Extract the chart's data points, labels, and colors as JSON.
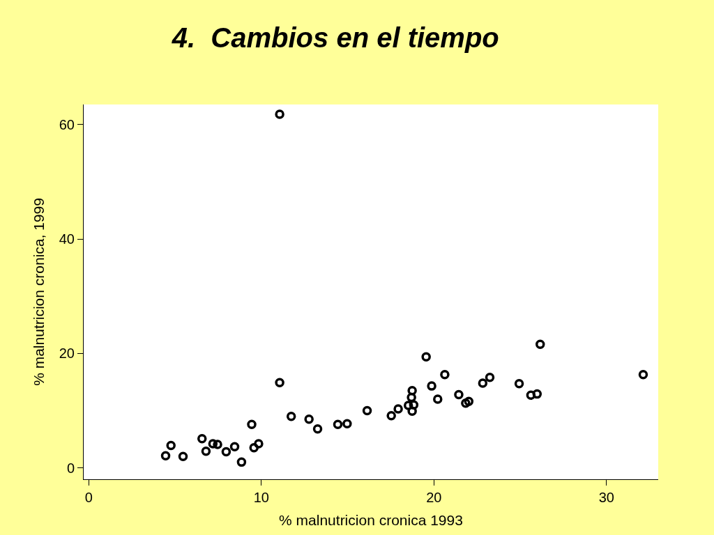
{
  "chart_data": {
    "type": "scatter",
    "title": "4.  Cambios en el tiempo",
    "xlabel": "% malnutricion cronica 1993",
    "ylabel": "% malnutricion cronica, 1999",
    "x": [
      4.45,
      4.76,
      5.46,
      6.56,
      6.79,
      7.19,
      7.46,
      7.96,
      8.45,
      8.85,
      9.44,
      9.57,
      9.84,
      11.06,
      11.06,
      11.73,
      12.76,
      13.26,
      14.43,
      14.97,
      16.13,
      17.53,
      17.93,
      18.52,
      18.7,
      18.74,
      18.83,
      18.74,
      19.55,
      19.87,
      20.22,
      20.63,
      21.44,
      21.84,
      22.02,
      22.83,
      23.24,
      24.94,
      25.62,
      25.98,
      26.16,
      32.13
    ],
    "series": [
      {
        "color": "#000000",
        "values": [
          2.1,
          3.9,
          2.0,
          5.1,
          2.9,
          4.2,
          4.1,
          2.8,
          3.7,
          1.0,
          7.6,
          3.5,
          4.2,
          61.8,
          14.9,
          9.0,
          8.5,
          6.8,
          7.6,
          7.7,
          10.0,
          9.1,
          10.3,
          10.9,
          12.3,
          13.5,
          11.0,
          9.9,
          19.4,
          14.3,
          12.0,
          16.3,
          12.8,
          11.3,
          11.6,
          14.8,
          15.8,
          14.7,
          12.7,
          12.9,
          21.6,
          16.3
        ]
      }
    ],
    "xlim": [
      -0.3,
      33
    ],
    "ylim": [
      -2,
      63.5
    ],
    "xticks": [
      0,
      10,
      20,
      30
    ],
    "yticks": [
      0,
      20,
      40,
      60
    ],
    "marker": "circle"
  }
}
